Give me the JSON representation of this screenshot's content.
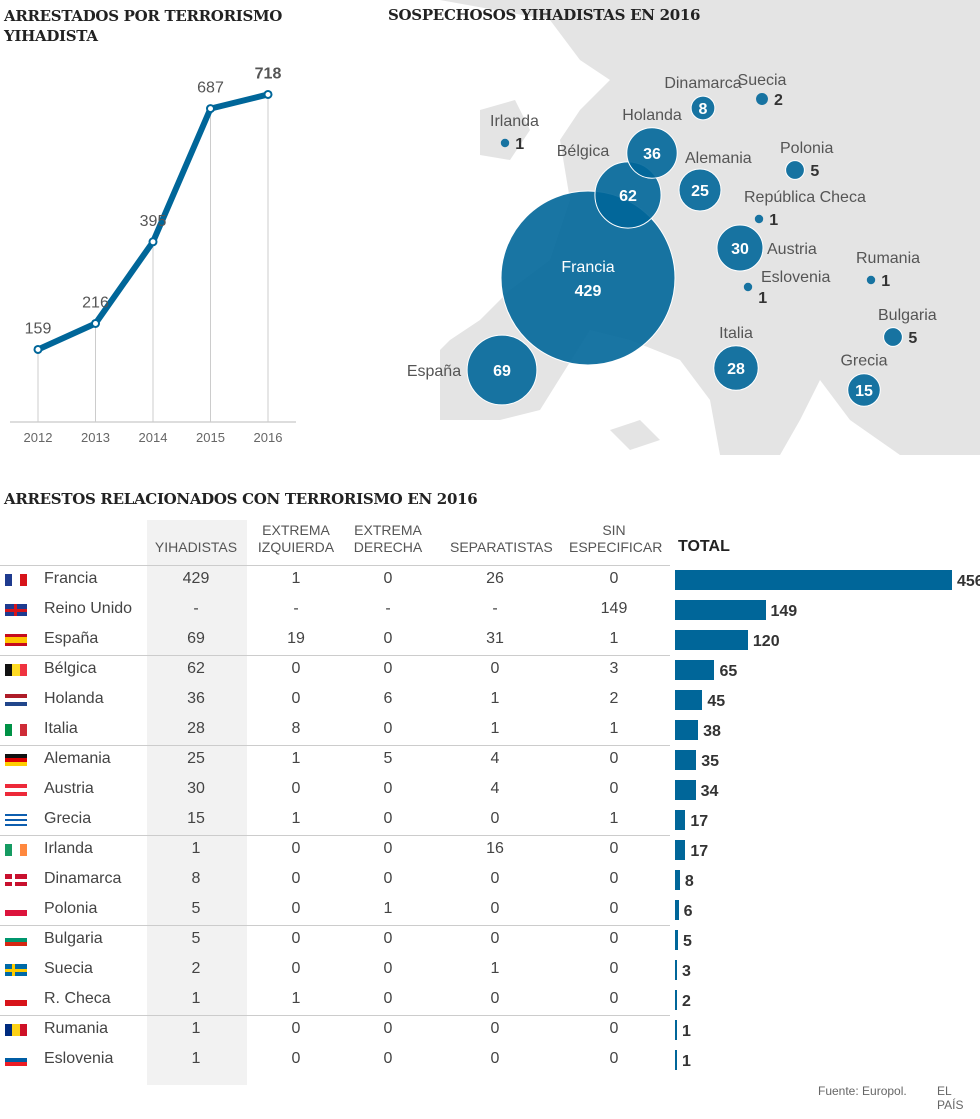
{
  "colors": {
    "accent": "#006699",
    "map_land": "#e4e4e4",
    "column_highlight": "#f2f2f2"
  },
  "chart_data": [
    {
      "type": "line",
      "title": "ARRESTADOS POR TERRORISMO YIHADISTA",
      "categories": [
        "2012",
        "2013",
        "2014",
        "2015",
        "2016"
      ],
      "values": [
        159,
        216,
        395,
        687,
        718
      ],
      "ylim": [
        0,
        718
      ],
      "grid": false,
      "color": "#006699"
    },
    {
      "type": "bubble-map",
      "title": "SOSPECHOSOS YIHADISTAS EN 2016",
      "points": [
        {
          "name": "Francia",
          "value": 429
        },
        {
          "name": "España",
          "value": 69
        },
        {
          "name": "Bélgica",
          "value": 62
        },
        {
          "name": "Holanda",
          "value": 36
        },
        {
          "name": "Alemania",
          "value": 25
        },
        {
          "name": "Dinamarca",
          "value": 8
        },
        {
          "name": "Suecia",
          "value": 2
        },
        {
          "name": "Irlanda",
          "value": 1
        },
        {
          "name": "Polonia",
          "value": 5
        },
        {
          "name": "República Checa",
          "value": 1
        },
        {
          "name": "Austria",
          "value": 30
        },
        {
          "name": "Eslovenia",
          "value": 1
        },
        {
          "name": "Rumania",
          "value": 1
        },
        {
          "name": "Bulgaria",
          "value": 5
        },
        {
          "name": "Grecia",
          "value": 15
        },
        {
          "name": "Italia",
          "value": 28
        }
      ]
    },
    {
      "type": "table",
      "title": "ARRESTOS RELACIONADOS CON TERRORISMO EN 2016",
      "columns": [
        "YIHADISTAS",
        "EXTREMA IZQUIERDA",
        "EXTREMA DERECHA",
        "SEPARATISTAS",
        "SIN ESPECIFICAR",
        "TOTAL"
      ],
      "rows": [
        {
          "country": "Francia",
          "flag": {
            "dir": "v",
            "colors": [
              "#1f3b8f",
              "#fff",
              "#d7141a"
            ]
          },
          "values": [
            "429",
            "1",
            "0",
            "26",
            "0"
          ],
          "total": 456
        },
        {
          "country": "Reino Unido",
          "flag": {
            "dir": "uk",
            "colors": [
              "#1f3b8f",
              "#fff",
              "#d7141a"
            ]
          },
          "values": [
            "-",
            "-",
            "-",
            "-",
            "149"
          ],
          "total": 149
        },
        {
          "country": "España",
          "flag": {
            "dir": "h",
            "colors": [
              "#c60b1e",
              "#ffc400",
              "#ffc400",
              "#c60b1e"
            ]
          },
          "values": [
            "69",
            "19",
            "0",
            "31",
            "1"
          ],
          "total": 120
        },
        {
          "country": "Bélgica",
          "flag": {
            "dir": "v",
            "colors": [
              "#111",
              "#fdda24",
              "#ef3340"
            ]
          },
          "values": [
            "62",
            "0",
            "0",
            "0",
            "3"
          ],
          "total": 65
        },
        {
          "country": "Holanda",
          "flag": {
            "dir": "h",
            "colors": [
              "#ae1c28",
              "#fff",
              "#21468b"
            ]
          },
          "values": [
            "36",
            "0",
            "6",
            "1",
            "2"
          ],
          "total": 45
        },
        {
          "country": "Italia",
          "flag": {
            "dir": "v",
            "colors": [
              "#009246",
              "#fff",
              "#ce2b37"
            ]
          },
          "values": [
            "28",
            "8",
            "0",
            "1",
            "1"
          ],
          "total": 38
        },
        {
          "country": "Alemania",
          "flag": {
            "dir": "h",
            "colors": [
              "#111",
              "#dd0000",
              "#ffce00"
            ]
          },
          "values": [
            "25",
            "1",
            "5",
            "4",
            "0"
          ],
          "total": 35
        },
        {
          "country": "Austria",
          "flag": {
            "dir": "h",
            "colors": [
              "#ed2939",
              "#fff",
              "#ed2939"
            ]
          },
          "values": [
            "30",
            "0",
            "0",
            "4",
            "0"
          ],
          "total": 34
        },
        {
          "country": "Grecia",
          "flag": {
            "dir": "h",
            "colors": [
              "#0d5eaf",
              "#fff",
              "#0d5eaf",
              "#fff",
              "#0d5eaf"
            ]
          },
          "values": [
            "15",
            "1",
            "0",
            "0",
            "1"
          ],
          "total": 17
        },
        {
          "country": "Irlanda",
          "flag": {
            "dir": "v",
            "colors": [
              "#169b62",
              "#fff",
              "#ff883e"
            ]
          },
          "values": [
            "1",
            "0",
            "0",
            "16",
            "0"
          ],
          "total": 17
        },
        {
          "country": "Dinamarca",
          "flag": {
            "dir": "dk",
            "colors": [
              "#c8102e",
              "#fff"
            ]
          },
          "values": [
            "8",
            "0",
            "0",
            "0",
            "0"
          ],
          "total": 8
        },
        {
          "country": "Polonia",
          "flag": {
            "dir": "h",
            "colors": [
              "#fff",
              "#dc143c"
            ]
          },
          "values": [
            "5",
            "0",
            "1",
            "0",
            "0"
          ],
          "total": 6
        },
        {
          "country": "Bulgaria",
          "flag": {
            "dir": "h",
            "colors": [
              "#fff",
              "#00966e",
              "#d62612"
            ]
          },
          "values": [
            "5",
            "0",
            "0",
            "0",
            "0"
          ],
          "total": 5
        },
        {
          "country": "Suecia",
          "flag": {
            "dir": "se",
            "colors": [
              "#006aa7",
              "#fecc00"
            ]
          },
          "values": [
            "2",
            "0",
            "0",
            "1",
            "0"
          ],
          "total": 3
        },
        {
          "country": "R. Checa",
          "flag": {
            "dir": "h",
            "colors": [
              "#fff",
              "#d7141a"
            ]
          },
          "values": [
            "1",
            "1",
            "0",
            "0",
            "0"
          ],
          "total": 2
        },
        {
          "country": "Rumania",
          "flag": {
            "dir": "v",
            "colors": [
              "#002b7f",
              "#fcd116",
              "#ce1126"
            ]
          },
          "values": [
            "1",
            "0",
            "0",
            "0",
            "0"
          ],
          "total": 1
        },
        {
          "country": "Eslovenia",
          "flag": {
            "dir": "h",
            "colors": [
              "#fff",
              "#005da4",
              "#ed1c24"
            ]
          },
          "values": [
            "1",
            "0",
            "0",
            "0",
            "0"
          ],
          "total": 1
        }
      ],
      "xlim": [
        0,
        456
      ]
    }
  ],
  "footer": {
    "source": "Fuente: Europol.",
    "brand": "EL PAÍS"
  }
}
